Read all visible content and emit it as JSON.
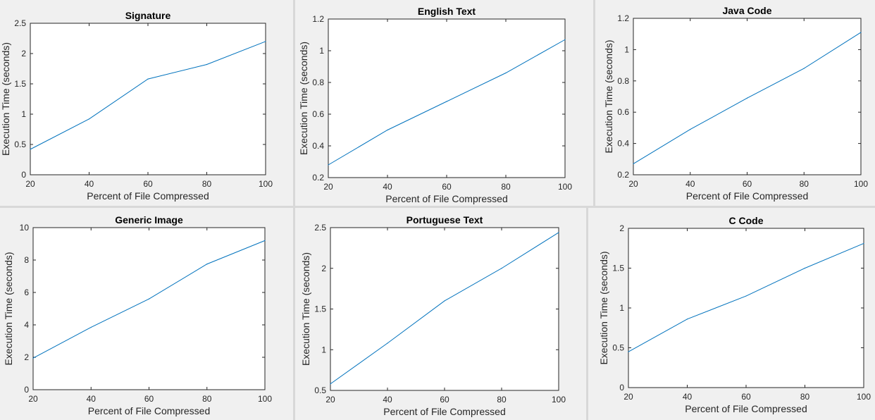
{
  "chart_data": [
    {
      "type": "line",
      "title": "Signature",
      "xlabel": "Percent of File Compressed",
      "ylabel": "Execution Time (seconds)",
      "xlim": [
        20,
        100
      ],
      "ylim": [
        0,
        2.5
      ],
      "xticks": [
        "20",
        "40",
        "60",
        "80",
        "100"
      ],
      "yticks": [
        "0",
        "0.5",
        "1",
        "1.5",
        "2",
        "2.5"
      ],
      "x": [
        20,
        40,
        60,
        80,
        100
      ],
      "series": [
        {
          "values": [
            0.42,
            0.92,
            1.58,
            1.82,
            2.2
          ]
        }
      ],
      "grid": false,
      "color": "#0072bd"
    },
    {
      "type": "line",
      "title": "English Text",
      "xlabel": "Percent of File Compressed",
      "ylabel": "Execution Time (seconds)",
      "xlim": [
        20,
        100
      ],
      "ylim": [
        0.2,
        1.2
      ],
      "xticks": [
        "20",
        "40",
        "60",
        "80",
        "100"
      ],
      "yticks": [
        "0.2",
        "0.4",
        "0.6",
        "0.8",
        "1",
        "1.2"
      ],
      "x": [
        20,
        40,
        60,
        80,
        100
      ],
      "series": [
        {
          "values": [
            0.28,
            0.5,
            0.68,
            0.86,
            1.07
          ]
        }
      ],
      "grid": false,
      "color": "#0072bd"
    },
    {
      "type": "line",
      "title": "Java Code",
      "xlabel": "Percent of File Compressed",
      "ylabel": "Execution Time (seconds)",
      "xlim": [
        20,
        100
      ],
      "ylim": [
        0.2,
        1.2
      ],
      "xticks": [
        "20",
        "40",
        "60",
        "80",
        "100"
      ],
      "yticks": [
        "0.2",
        "0.4",
        "0.6",
        "0.8",
        "1",
        "1.2"
      ],
      "x": [
        20,
        40,
        60,
        80,
        100
      ],
      "series": [
        {
          "values": [
            0.27,
            0.49,
            0.69,
            0.88,
            1.11
          ]
        }
      ],
      "grid": false,
      "color": "#0072bd"
    },
    {
      "type": "line",
      "title": "Generic Image",
      "xlabel": "Percent of File Compressed",
      "ylabel": "Execution Time (seconds)",
      "xlim": [
        20,
        100
      ],
      "ylim": [
        0,
        10
      ],
      "xticks": [
        "20",
        "40",
        "60",
        "80",
        "100"
      ],
      "yticks": [
        "0",
        "2",
        "4",
        "6",
        "8",
        "10"
      ],
      "x": [
        20,
        40,
        60,
        80,
        100
      ],
      "series": [
        {
          "values": [
            1.95,
            3.85,
            5.6,
            7.75,
            9.2
          ]
        }
      ],
      "grid": false,
      "color": "#0072bd"
    },
    {
      "type": "line",
      "title": "Portuguese Text",
      "xlabel": "Percent of File Compressed",
      "ylabel": "Execution Time (seconds)",
      "xlim": [
        20,
        100
      ],
      "ylim": [
        0.5,
        2.5
      ],
      "xticks": [
        "20",
        "40",
        "60",
        "80",
        "100"
      ],
      "yticks": [
        "0.5",
        "1",
        "1.5",
        "2",
        "2.5"
      ],
      "x": [
        20,
        40,
        60,
        80,
        100
      ],
      "series": [
        {
          "values": [
            0.58,
            1.08,
            1.6,
            2.0,
            2.44
          ]
        }
      ],
      "grid": false,
      "color": "#0072bd"
    },
    {
      "type": "line",
      "title": "C Code",
      "xlabel": "Percent of File Compressed",
      "ylabel": "Execution Time (seconds)",
      "xlim": [
        20,
        100
      ],
      "ylim": [
        0,
        2
      ],
      "xticks": [
        "20",
        "40",
        "60",
        "80",
        "100"
      ],
      "yticks": [
        "0",
        "0.5",
        "1",
        "1.5",
        "2"
      ],
      "x": [
        20,
        40,
        60,
        80,
        100
      ],
      "series": [
        {
          "values": [
            0.45,
            0.86,
            1.15,
            1.5,
            1.81
          ]
        }
      ],
      "grid": false,
      "color": "#0072bd"
    }
  ]
}
